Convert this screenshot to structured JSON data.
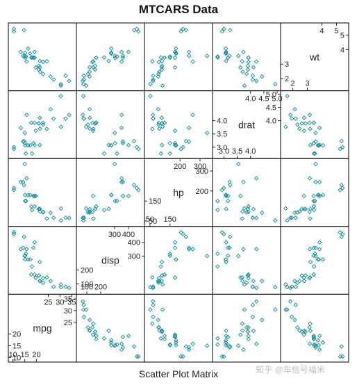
{
  "chart_data": {
    "type": "scatter",
    "title": "MTCARS Data",
    "xlabel": "Scatter Plot Matrix",
    "variables": [
      {
        "name": "mpg",
        "range": [
          9.5,
          35.5
        ],
        "ticks_a": [
          "10",
          "15",
          "20"
        ],
        "ticks_a_vals": [
          10,
          15,
          20
        ],
        "ticks_b": [
          "25",
          "30",
          "35"
        ],
        "ticks_b_vals": [
          25,
          30,
          35
        ],
        "mid_label": "25"
      },
      {
        "name": "disp",
        "range": [
          50,
          490
        ],
        "ticks_a": [
          "100",
          "200"
        ],
        "ticks_a_vals": [
          100,
          200
        ],
        "ticks_b": [
          "300",
          "400"
        ],
        "ticks_b_vals": [
          300,
          400
        ],
        "mid_label": "300"
      },
      {
        "name": "hp",
        "range": [
          40,
          345
        ],
        "ticks_a": [
          "50",
          "150"
        ],
        "ticks_a_vals": [
          50,
          150
        ],
        "ticks_b": [
          "200",
          "300"
        ],
        "ticks_b_vals": [
          200,
          300
        ],
        "mid_label": "200"
      },
      {
        "name": "drat",
        "range": [
          2.7,
          5.0
        ],
        "ticks_a": [
          "3.0",
          "3.5",
          "4.0"
        ],
        "ticks_a_vals": [
          3.0,
          3.5,
          4.0
        ],
        "ticks_b": [
          "4.0",
          "4.5",
          "5.0"
        ],
        "ticks_b_vals": [
          4.0,
          4.5,
          5.0
        ],
        "mid_label": "4.0"
      },
      {
        "name": "wt",
        "range": [
          1.4,
          5.6
        ],
        "ticks_a": [
          "2",
          "3"
        ],
        "ticks_a_vals": [
          2,
          3
        ],
        "ticks_b": [
          "4",
          "5"
        ],
        "ticks_b_vals": [
          4,
          5
        ],
        "mid_label": "4"
      }
    ],
    "records": [
      [
        21.0,
        160,
        110,
        3.9,
        2.62
      ],
      [
        21.0,
        160,
        110,
        3.9,
        2.875
      ],
      [
        22.8,
        108,
        93,
        3.85,
        2.32
      ],
      [
        21.4,
        258,
        110,
        3.08,
        3.215
      ],
      [
        18.7,
        360,
        175,
        3.15,
        3.44
      ],
      [
        18.1,
        225,
        105,
        2.76,
        3.46
      ],
      [
        14.3,
        360,
        245,
        3.21,
        3.57
      ],
      [
        24.4,
        146.7,
        62,
        3.69,
        3.19
      ],
      [
        22.8,
        140.8,
        95,
        3.92,
        3.15
      ],
      [
        19.2,
        167.6,
        123,
        3.92,
        3.44
      ],
      [
        17.8,
        167.6,
        123,
        3.92,
        3.44
      ],
      [
        16.4,
        275.8,
        180,
        3.07,
        4.07
      ],
      [
        17.3,
        275.8,
        180,
        3.07,
        3.73
      ],
      [
        15.2,
        275.8,
        180,
        3.07,
        3.78
      ],
      [
        10.4,
        472,
        205,
        2.93,
        5.25
      ],
      [
        10.4,
        460,
        215,
        3.0,
        5.424
      ],
      [
        14.7,
        440,
        230,
        3.23,
        5.345
      ],
      [
        32.4,
        78.7,
        66,
        4.08,
        2.2
      ],
      [
        30.4,
        75.7,
        52,
        4.93,
        1.615
      ],
      [
        33.9,
        71.1,
        65,
        4.22,
        1.835
      ],
      [
        21.5,
        120.1,
        97,
        3.7,
        2.465
      ],
      [
        15.5,
        318,
        150,
        2.76,
        3.52
      ],
      [
        15.2,
        304,
        150,
        3.15,
        3.435
      ],
      [
        13.3,
        350,
        245,
        3.73,
        3.84
      ],
      [
        19.2,
        400,
        175,
        3.08,
        3.845
      ],
      [
        27.3,
        79,
        66,
        4.08,
        1.935
      ],
      [
        26.0,
        120.3,
        91,
        4.43,
        2.14
      ],
      [
        30.4,
        95.1,
        113,
        3.77,
        1.513
      ],
      [
        15.8,
        351,
        264,
        4.22,
        3.17
      ],
      [
        19.7,
        145,
        175,
        3.62,
        2.77
      ],
      [
        15.0,
        301,
        335,
        3.54,
        3.57
      ],
      [
        21.4,
        121,
        109,
        4.11,
        2.78
      ]
    ]
  },
  "watermark": "知乎 @车信号福米"
}
